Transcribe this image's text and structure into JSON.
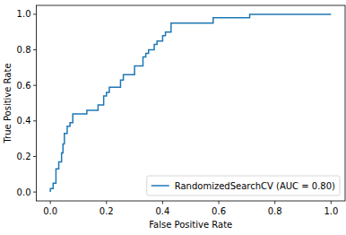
{
  "chart_data": {
    "type": "line",
    "x_label": "False Positive Rate",
    "y_label": "True Positive Rate",
    "x": [
      0,
      0,
      0.01,
      0.01,
      0.02,
      0.02,
      0.03,
      0.03,
      0.04,
      0.04,
      0.045,
      0.045,
      0.05,
      0.05,
      0.06,
      0.06,
      0.07,
      0.07,
      0.08,
      0.08,
      0.13,
      0.13,
      0.17,
      0.17,
      0.19,
      0.19,
      0.2,
      0.2,
      0.21,
      0.21,
      0.25,
      0.25,
      0.26,
      0.26,
      0.3,
      0.3,
      0.33,
      0.33,
      0.34,
      0.34,
      0.35,
      0.35,
      0.37,
      0.37,
      0.38,
      0.38,
      0.4,
      0.4,
      0.41,
      0.41,
      0.43,
      0.43,
      0.58,
      0.58,
      0.71,
      0.71,
      1.0
    ],
    "series": [
      {
        "name": "RandomizedSearchCV (AUC = 0.80)",
        "color": "#1f77b4",
        "values": [
          0,
          0.02,
          0.02,
          0.05,
          0.05,
          0.13,
          0.13,
          0.17,
          0.17,
          0.22,
          0.22,
          0.27,
          0.27,
          0.33,
          0.33,
          0.37,
          0.37,
          0.39,
          0.39,
          0.44,
          0.44,
          0.46,
          0.46,
          0.49,
          0.49,
          0.54,
          0.54,
          0.56,
          0.56,
          0.59,
          0.59,
          0.63,
          0.63,
          0.66,
          0.66,
          0.71,
          0.71,
          0.76,
          0.76,
          0.78,
          0.78,
          0.8,
          0.8,
          0.83,
          0.83,
          0.85,
          0.85,
          0.88,
          0.88,
          0.9,
          0.9,
          0.95,
          0.95,
          0.98,
          0.98,
          1.0,
          1.0
        ]
      }
    ],
    "xlim": [
      -0.05,
      1.05
    ],
    "ylim": [
      -0.05,
      1.05
    ],
    "xticks": [
      {
        "value": 0,
        "label": "0.0"
      },
      {
        "value": 0.2,
        "label": "0.2"
      },
      {
        "value": 0.4,
        "label": "0.4"
      },
      {
        "value": 0.6,
        "label": "0.6"
      },
      {
        "value": 0.8,
        "label": "0.8"
      },
      {
        "value": 1,
        "label": "1.0"
      }
    ],
    "yticks": [
      {
        "value": 0,
        "label": "0.0"
      },
      {
        "value": 0.2,
        "label": "0.2"
      },
      {
        "value": 0.4,
        "label": "0.4"
      },
      {
        "value": 0.6,
        "label": "0.6"
      },
      {
        "value": 0.8,
        "label": "0.8"
      },
      {
        "value": 1,
        "label": "1.0"
      }
    ],
    "legend": "lower right",
    "grid": false
  }
}
